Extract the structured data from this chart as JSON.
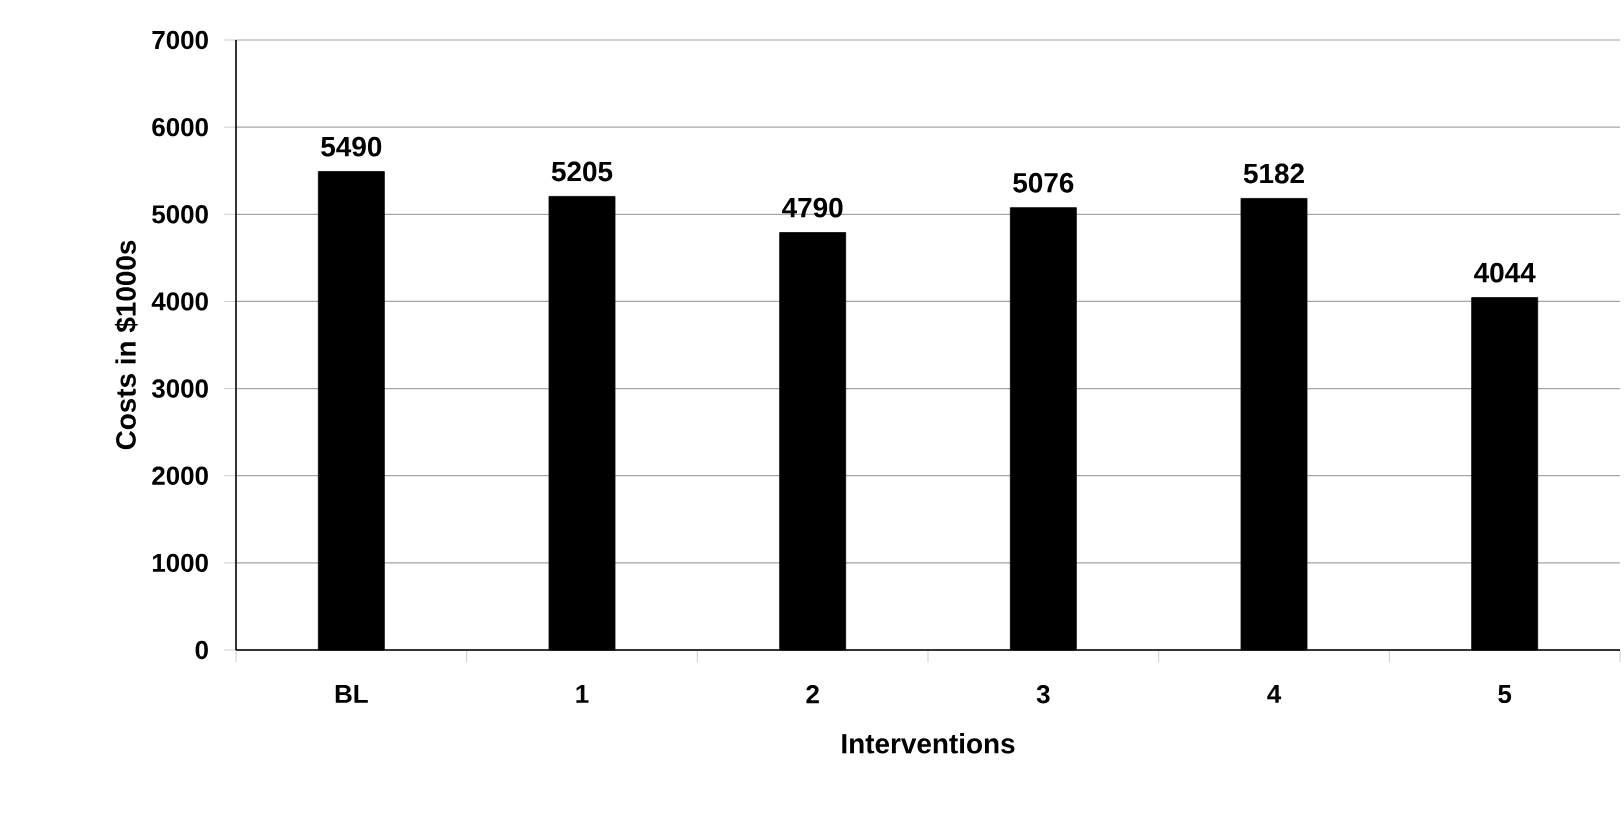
{
  "chart_data": {
    "type": "bar",
    "xlabel": "Interventions",
    "ylabel": "Costs in $1000s",
    "categories": [
      "BL",
      "1",
      "2",
      "3",
      "4",
      "5"
    ],
    "values": [
      5490,
      5205,
      4790,
      5076,
      5182,
      4044
    ],
    "color": "#000000",
    "ylim": [
      0,
      7000
    ],
    "yticks": [
      0,
      1000,
      2000,
      3000,
      4000,
      5000,
      6000,
      7000
    ],
    "grid": "y",
    "data_labels": true
  }
}
